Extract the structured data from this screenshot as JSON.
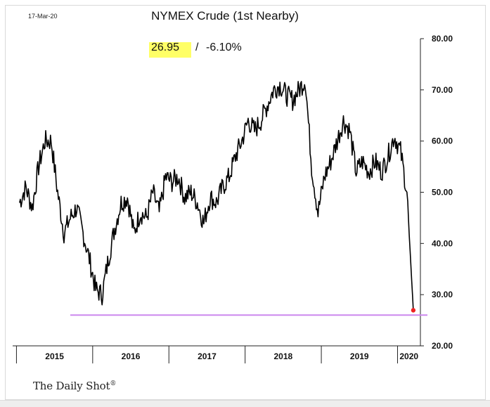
{
  "header": {
    "date": "17-Mar-20",
    "title": "NYMEX Crude (1st Nearby)",
    "last_price": "26.95",
    "separator": "/",
    "change": "-6.10%"
  },
  "footer": {
    "brand": "The Daily Shot",
    "brand_mark": "®"
  },
  "colors": {
    "line": "#000000",
    "support_line": "#cc88ee",
    "last_point": "#ee2222",
    "highlight": "#ffff66"
  },
  "chart_data": {
    "type": "line",
    "title": "NYMEX Crude (1st Nearby)",
    "xlabel": "",
    "ylabel": "",
    "ylim": [
      20,
      80
    ],
    "y_ticks": [
      "20.00",
      "30.00",
      "40.00",
      "50.00",
      "60.00",
      "70.00",
      "80.00"
    ],
    "y_axis_side": "right",
    "x_ticks": [
      "2015",
      "2016",
      "2017",
      "2018",
      "2019",
      "2020"
    ],
    "grid": false,
    "series": [
      {
        "x": [
          "2015-01",
          "2015-02",
          "2015-03",
          "2015-04",
          "2015-05",
          "2015-06",
          "2015-07",
          "2015-08",
          "2015-09",
          "2015-10",
          "2015-11",
          "2015-12",
          "2016-01",
          "2016-02",
          "2016-03",
          "2016-04",
          "2016-05",
          "2016-06",
          "2016-07",
          "2016-08",
          "2016-09",
          "2016-10",
          "2016-11",
          "2016-12",
          "2017-01",
          "2017-02",
          "2017-03",
          "2017-04",
          "2017-05",
          "2017-06",
          "2017-07",
          "2017-08",
          "2017-09",
          "2017-10",
          "2017-11",
          "2017-12",
          "2018-01",
          "2018-02",
          "2018-03",
          "2018-04",
          "2018-05",
          "2018-06",
          "2018-07",
          "2018-08",
          "2018-09",
          "2018-10",
          "2018-11",
          "2018-12",
          "2019-01",
          "2019-02",
          "2019-03",
          "2019-04",
          "2019-05",
          "2019-06",
          "2019-07",
          "2019-08",
          "2019-09",
          "2019-10",
          "2019-11",
          "2019-12",
          "2020-01",
          "2020-02",
          "2020-03"
        ],
        "values": [
          48,
          51,
          47,
          55,
          60,
          60,
          50,
          42,
          45,
          47,
          42,
          37,
          31,
          30,
          37,
          43,
          48,
          49,
          42,
          46,
          45,
          50,
          46,
          53,
          52,
          53,
          49,
          50,
          48,
          44,
          49,
          48,
          51,
          53,
          57,
          60,
          64,
          62,
          64,
          67,
          70,
          71,
          69,
          68,
          70,
          72,
          55,
          46,
          53,
          56,
          60,
          64,
          62,
          54,
          56,
          54,
          56,
          54,
          57,
          61,
          58,
          50,
          27
        ]
      }
    ],
    "last_value": 26.95,
    "support_level": 26
  }
}
